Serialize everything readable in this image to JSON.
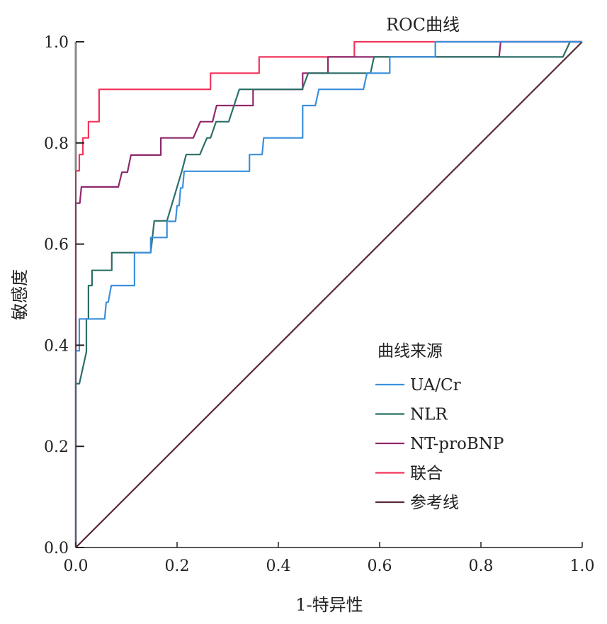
{
  "chart_data": {
    "type": "line",
    "title": "ROC曲线",
    "xlabel": "1-特异性",
    "ylabel": "敏感度",
    "xlim": [
      0,
      1
    ],
    "ylim": [
      0,
      1
    ],
    "x_ticks": [
      "0.0",
      "0.2",
      "0.4",
      "0.6",
      "0.8",
      "1.0"
    ],
    "y_ticks": [
      "0.0",
      "0.2",
      "0.4",
      "0.6",
      "0.8",
      "1.0"
    ],
    "grid": false,
    "legend": {
      "title": "曲线来源",
      "placement": "bottom-right"
    },
    "series": [
      {
        "name": "UA/Cr",
        "color": "#3a8fdc",
        "points": [
          [
            0,
            0
          ],
          [
            0,
            0.389
          ],
          [
            0.007,
            0.389
          ],
          [
            0.007,
            0.452
          ],
          [
            0.057,
            0.452
          ],
          [
            0.06,
            0.485
          ],
          [
            0.064,
            0.485
          ],
          [
            0.07,
            0.518
          ],
          [
            0.116,
            0.518
          ],
          [
            0.116,
            0.583
          ],
          [
            0.148,
            0.583
          ],
          [
            0.148,
            0.613
          ],
          [
            0.18,
            0.613
          ],
          [
            0.18,
            0.645
          ],
          [
            0.197,
            0.645
          ],
          [
            0.2,
            0.676
          ],
          [
            0.204,
            0.676
          ],
          [
            0.207,
            0.711
          ],
          [
            0.211,
            0.711
          ],
          [
            0.214,
            0.744
          ],
          [
            0.343,
            0.744
          ],
          [
            0.343,
            0.777
          ],
          [
            0.368,
            0.777
          ],
          [
            0.371,
            0.81
          ],
          [
            0.448,
            0.81
          ],
          [
            0.448,
            0.874
          ],
          [
            0.473,
            0.874
          ],
          [
            0.48,
            0.906
          ],
          [
            0.568,
            0.906
          ],
          [
            0.575,
            0.938
          ],
          [
            0.62,
            0.938
          ],
          [
            0.62,
            0.97
          ],
          [
            0.71,
            0.97
          ],
          [
            0.71,
            1
          ],
          [
            1,
            1
          ]
        ]
      },
      {
        "name": "NLR",
        "color": "#2b6f66",
        "points": [
          [
            0,
            0
          ],
          [
            0,
            0.324
          ],
          [
            0.007,
            0.324
          ],
          [
            0.021,
            0.387
          ],
          [
            0.021,
            0.452
          ],
          [
            0.025,
            0.452
          ],
          [
            0.025,
            0.518
          ],
          [
            0.032,
            0.518
          ],
          [
            0.032,
            0.548
          ],
          [
            0.071,
            0.548
          ],
          [
            0.071,
            0.583
          ],
          [
            0.148,
            0.583
          ],
          [
            0.155,
            0.646
          ],
          [
            0.18,
            0.646
          ],
          [
            0.21,
            0.746
          ],
          [
            0.218,
            0.777
          ],
          [
            0.245,
            0.777
          ],
          [
            0.259,
            0.81
          ],
          [
            0.266,
            0.81
          ],
          [
            0.277,
            0.842
          ],
          [
            0.302,
            0.842
          ],
          [
            0.323,
            0.906
          ],
          [
            0.447,
            0.906
          ],
          [
            0.459,
            0.938
          ],
          [
            0.582,
            0.938
          ],
          [
            0.589,
            0.97
          ],
          [
            0.962,
            0.97
          ],
          [
            0.976,
            1
          ],
          [
            1,
            1
          ]
        ]
      },
      {
        "name": "NT-proBNP",
        "color": "#8e2a6c",
        "points": [
          [
            0,
            0
          ],
          [
            0,
            0.681
          ],
          [
            0.008,
            0.681
          ],
          [
            0.011,
            0.713
          ],
          [
            0.084,
            0.713
          ],
          [
            0.091,
            0.742
          ],
          [
            0.102,
            0.742
          ],
          [
            0.109,
            0.776
          ],
          [
            0.168,
            0.776
          ],
          [
            0.168,
            0.81
          ],
          [
            0.232,
            0.81
          ],
          [
            0.246,
            0.842
          ],
          [
            0.27,
            0.842
          ],
          [
            0.278,
            0.874
          ],
          [
            0.35,
            0.874
          ],
          [
            0.35,
            0.906
          ],
          [
            0.448,
            0.906
          ],
          [
            0.448,
            0.938
          ],
          [
            0.498,
            0.938
          ],
          [
            0.498,
            0.97
          ],
          [
            0.836,
            0.97
          ],
          [
            0.839,
            1
          ],
          [
            1,
            1
          ]
        ]
      },
      {
        "name": "联合",
        "color": "#f2355c",
        "points": [
          [
            0,
            0
          ],
          [
            0,
            0.745
          ],
          [
            0.007,
            0.745
          ],
          [
            0.007,
            0.777
          ],
          [
            0.014,
            0.777
          ],
          [
            0.014,
            0.81
          ],
          [
            0.025,
            0.81
          ],
          [
            0.025,
            0.842
          ],
          [
            0.046,
            0.842
          ],
          [
            0.046,
            0.906
          ],
          [
            0.266,
            0.906
          ],
          [
            0.266,
            0.938
          ],
          [
            0.362,
            0.938
          ],
          [
            0.362,
            0.97
          ],
          [
            0.55,
            0.97
          ],
          [
            0.55,
            1
          ],
          [
            1,
            1
          ]
        ]
      },
      {
        "name": "参考线",
        "color": "#5a2a35",
        "points": [
          [
            0,
            0
          ],
          [
            1,
            1
          ]
        ]
      }
    ]
  }
}
